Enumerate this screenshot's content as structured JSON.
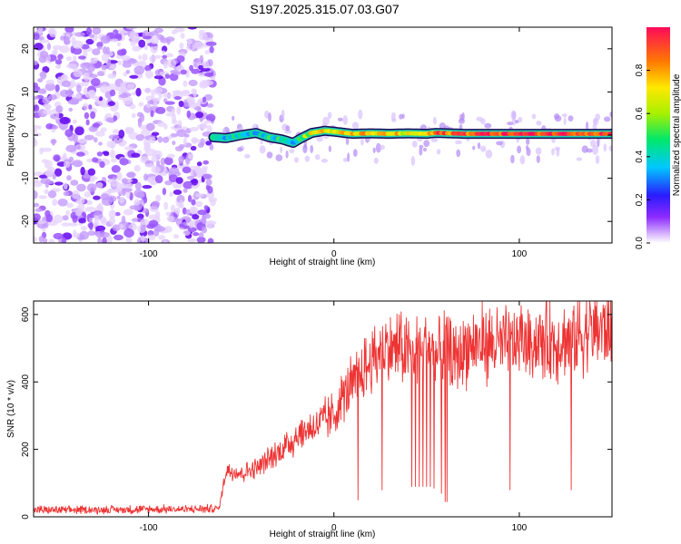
{
  "title": "S197.2025.315.07.03.G07",
  "chart_data": [
    {
      "type": "heatmap",
      "xlabel": "Height of straight line (km)",
      "ylabel": "Frequency (Hz)",
      "xlim": [
        -162,
        150
      ],
      "ylim": [
        -25,
        25
      ],
      "xticks": [
        -100,
        0,
        100
      ],
      "xtick_labels": [
        "-100",
        "0",
        "100"
      ],
      "yticks": [
        -20,
        -10,
        0,
        10,
        20
      ],
      "ytick_labels": [
        "-20",
        "-10",
        "0",
        "10",
        "20"
      ],
      "noise_region_x": [
        -162,
        -65
      ],
      "signal_region_x": [
        -65,
        150
      ],
      "signal_frequency_hz": 0.5,
      "signal_track": [
        {
          "x": -65,
          "y": -0.5,
          "amp": 0.35
        },
        {
          "x": -58,
          "y": -0.7,
          "amp": 0.4
        },
        {
          "x": -50,
          "y": 0.0,
          "amp": 0.45
        },
        {
          "x": -42,
          "y": 0.5,
          "amp": 0.4
        },
        {
          "x": -35,
          "y": -0.5,
          "amp": 0.45
        },
        {
          "x": -28,
          "y": -1.0,
          "amp": 0.4
        },
        {
          "x": -22,
          "y": -1.8,
          "amp": 0.35
        },
        {
          "x": -18,
          "y": -0.8,
          "amp": 0.45
        },
        {
          "x": -12,
          "y": 0.5,
          "amp": 0.7
        },
        {
          "x": -5,
          "y": 1.0,
          "amp": 0.75
        },
        {
          "x": 0,
          "y": 0.8,
          "amp": 0.6
        },
        {
          "x": 10,
          "y": 0.3,
          "amp": 0.8
        },
        {
          "x": 20,
          "y": 0.4,
          "amp": 0.7
        },
        {
          "x": 30,
          "y": 0.3,
          "amp": 0.75
        },
        {
          "x": 40,
          "y": 0.4,
          "amp": 0.65
        },
        {
          "x": 50,
          "y": 0.3,
          "amp": 0.7
        },
        {
          "x": 55,
          "y": 0.5,
          "amp": 0.85
        },
        {
          "x": 70,
          "y": 0.3,
          "amp": 0.9
        },
        {
          "x": 85,
          "y": 0.3,
          "amp": 0.95
        },
        {
          "x": 100,
          "y": 0.3,
          "amp": 0.92
        },
        {
          "x": 115,
          "y": 0.3,
          "amp": 0.95
        },
        {
          "x": 130,
          "y": 0.3,
          "amp": 0.95
        },
        {
          "x": 150,
          "y": 0.3,
          "amp": 0.9
        }
      ]
    },
    {
      "type": "line",
      "xlabel": "Height of straight line (km)",
      "ylabel": "SNR (10 * v/v)",
      "xlim": [
        -162,
        150
      ],
      "ylim": [
        0,
        640
      ],
      "xticks": [
        -100,
        0,
        100
      ],
      "xtick_labels": [
        "-100",
        "0",
        "100"
      ],
      "yticks": [
        0,
        200,
        400,
        600
      ],
      "ytick_labels": [
        "0",
        "200",
        "400",
        "600"
      ],
      "color": "#ee3333",
      "series": [
        {
          "name": "SNR",
          "x": [
            -162,
            -140,
            -120,
            -100,
            -80,
            -62,
            -58,
            -50,
            -40,
            -30,
            -20,
            -10,
            0,
            5,
            10,
            15,
            20,
            25,
            30,
            35,
            40,
            45,
            50,
            55,
            60,
            65,
            70,
            80,
            90,
            100,
            110,
            120,
            130,
            140,
            150
          ],
          "values": [
            20,
            20,
            21,
            22,
            22,
            25,
            140,
            130,
            150,
            190,
            240,
            270,
            300,
            360,
            390,
            420,
            460,
            490,
            500,
            500,
            480,
            500,
            510,
            470,
            500,
            460,
            500,
            520,
            510,
            520,
            520,
            520,
            530,
            560,
            560
          ]
        }
      ],
      "dropouts": [
        {
          "x": 13,
          "value": 50
        },
        {
          "x": 26,
          "value": 80
        },
        {
          "x": 42,
          "value": 90
        },
        {
          "x": 44,
          "value": 90
        },
        {
          "x": 46,
          "value": 90
        },
        {
          "x": 48,
          "value": 90
        },
        {
          "x": 50,
          "value": 90
        },
        {
          "x": 52,
          "value": 90
        },
        {
          "x": 54,
          "value": 85
        },
        {
          "x": 58,
          "value": 70
        },
        {
          "x": 60,
          "value": 45
        },
        {
          "x": 61,
          "value": 45
        },
        {
          "x": 95,
          "value": 80
        },
        {
          "x": 128,
          "value": 80
        }
      ]
    },
    {
      "type": "colorbar",
      "label": "Normalized spectral amplitude",
      "range": [
        0,
        1
      ],
      "ticks": [
        0.0,
        0.2,
        0.4,
        0.6,
        0.8
      ],
      "tick_labels": [
        "0.0",
        "0.2",
        "0.4",
        "0.6",
        "0.8"
      ]
    }
  ]
}
